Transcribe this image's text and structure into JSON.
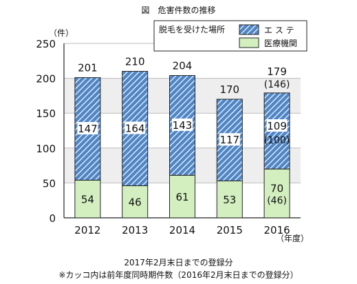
{
  "chart_data": {
    "type": "bar",
    "stacked": true,
    "title": "図　危害件数の推移",
    "y_unit": "（件）",
    "x_unit": "（年度）",
    "categories": [
      "2012",
      "2013",
      "2014",
      "2015",
      "2016"
    ],
    "ylim": [
      0,
      250
    ],
    "yticks": [
      0,
      50,
      100,
      150,
      200,
      250
    ],
    "grid": true,
    "legend_title": "脱毛を受けた場所",
    "legend_position": "top-right",
    "series": [
      {
        "name": "医療機関",
        "color": "#d3efbf",
        "values": [
          54,
          46,
          61,
          53,
          70
        ],
        "value_labels": [
          "54",
          "46",
          "61",
          "53",
          "70"
        ],
        "paren_labels": [
          "",
          "",
          "",
          "",
          "(46)"
        ]
      },
      {
        "name": "エ ス テ",
        "color": "#4f86c6",
        "pattern": "diagonal-hatch",
        "values": [
          147,
          164,
          143,
          117,
          109
        ],
        "value_labels": [
          "147",
          "164",
          "143",
          "117",
          "109"
        ],
        "paren_labels": [
          "",
          "",
          "",
          "",
          "(100)"
        ]
      }
    ],
    "totals": [
      201,
      210,
      204,
      170,
      179
    ],
    "total_labels": [
      "201",
      "210",
      "204",
      "170",
      "179"
    ],
    "total_paren_labels": [
      "",
      "",
      "",
      "",
      "(146)"
    ]
  },
  "notes": {
    "line1": "2017年2月末日までの登録分",
    "line2": "※カッコ内は前年度同時期件数（2016年2月末日までの登録分）"
  }
}
